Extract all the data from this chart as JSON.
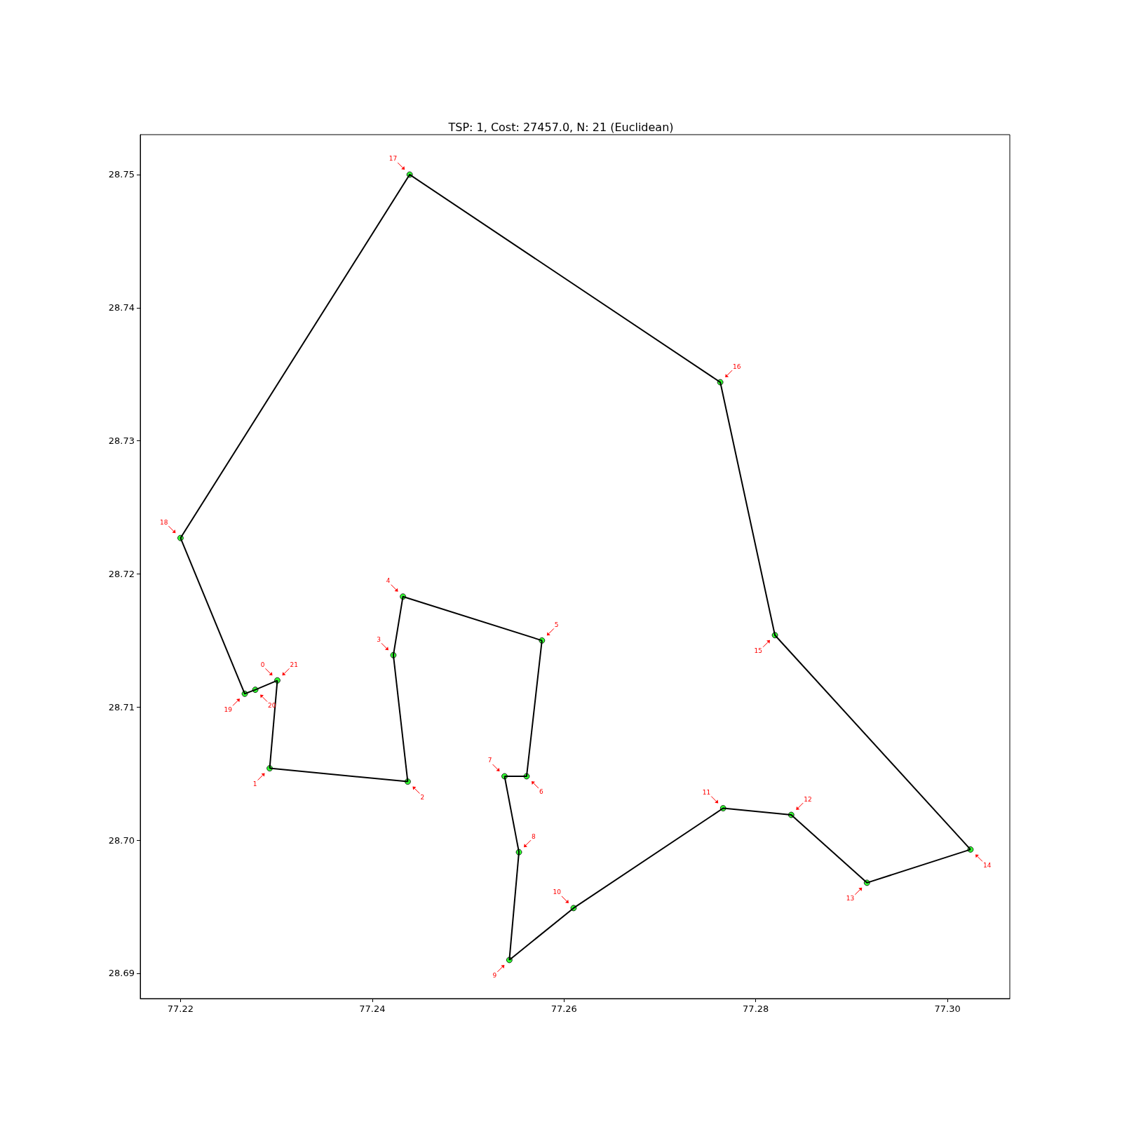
{
  "chart_data": {
    "type": "line",
    "title": "TSP: 1, Cost: 27457.0, N: 21 (Euclidean)",
    "series": [
      {
        "color": "#000000",
        "marker": "none",
        "x": [
          77.2301,
          77.2293
        ],
        "values": [
          28.712,
          28.7054
        ]
      },
      {
        "color": "#000000",
        "marker": "none",
        "x": [
          77.2293,
          77.2437
        ],
        "values": [
          28.7054,
          28.7044
        ]
      },
      {
        "color": "#000000",
        "marker": "none",
        "x": [
          77.2437,
          77.2422
        ],
        "values": [
          28.7044,
          28.7139
        ]
      },
      {
        "color": "#000000",
        "marker": "none",
        "x": [
          77.2422,
          77.2432,
          77.2577
        ],
        "values": [
          28.7139,
          28.7183,
          28.715
        ]
      },
      {
        "color": "#000000",
        "marker": "none",
        "x": [
          77.2577,
          77.2561,
          77.2538
        ],
        "values": [
          28.715,
          28.7048,
          28.7048
        ]
      },
      {
        "color": "#000000",
        "marker": "none",
        "x": [
          77.2538,
          77.2553
        ],
        "values": [
          28.7048,
          28.6991
        ]
      },
      {
        "color": "#000000",
        "marker": "none",
        "x": [
          77.2553,
          77.2543
        ],
        "values": [
          28.6991,
          28.691
        ]
      },
      {
        "color": "#000000",
        "marker": "none",
        "x": [
          77.2543,
          77.261,
          77.2766,
          77.2837,
          77.2916,
          77.3024
        ],
        "values": [
          28.691,
          28.6949,
          28.7024,
          28.7019,
          28.6968,
          28.6993
        ]
      },
      {
        "color": "#000000",
        "marker": "none",
        "x": [
          77.3024,
          77.282,
          77.2763,
          77.2439,
          77.22
        ],
        "values": [
          28.6993,
          28.7154,
          28.7344,
          28.75,
          28.7227
        ]
      },
      {
        "color": "#000000",
        "marker": "none",
        "x": [
          77.22,
          77.2267,
          77.2278,
          77.2301
        ],
        "values": [
          28.7227,
          28.711,
          28.7113,
          28.712
        ]
      },
      {
        "type": "scatter",
        "color": "#00ff00",
        "marker": "circle",
        "x": [
          77.2301,
          77.2293,
          77.2437,
          77.2422,
          77.2432,
          77.2577,
          77.2561,
          77.2538,
          77.2553,
          77.2543,
          77.261,
          77.2766,
          77.2837,
          77.2916,
          77.3024,
          77.282,
          77.2763,
          77.2439,
          77.22,
          77.2267,
          77.2278
        ],
        "values": [
          28.712,
          28.7054,
          28.7044,
          28.7139,
          28.7183,
          28.715,
          28.7048,
          28.7048,
          28.6991,
          28.691,
          28.6949,
          28.7024,
          28.7019,
          28.6968,
          28.6993,
          28.7154,
          28.7344,
          28.75,
          28.7227,
          28.711,
          28.7113
        ]
      }
    ],
    "annotations": [
      {
        "text": "0",
        "x": 77.2301,
        "y": 28.712
      },
      {
        "text": "1",
        "x": 77.2293,
        "y": 28.7054
      },
      {
        "text": "2",
        "x": 77.2437,
        "y": 28.7044
      },
      {
        "text": "3",
        "x": 77.2422,
        "y": 28.7139
      },
      {
        "text": "4",
        "x": 77.2432,
        "y": 28.7183
      },
      {
        "text": "5",
        "x": 77.2577,
        "y": 28.715
      },
      {
        "text": "6",
        "x": 77.2561,
        "y": 28.7048
      },
      {
        "text": "7",
        "x": 77.2538,
        "y": 28.7048
      },
      {
        "text": "8",
        "x": 77.2553,
        "y": 28.6991
      },
      {
        "text": "9",
        "x": 77.2543,
        "y": 28.691
      },
      {
        "text": "10",
        "x": 77.261,
        "y": 28.6949
      },
      {
        "text": "11",
        "x": 77.2766,
        "y": 28.7024
      },
      {
        "text": "12",
        "x": 77.2837,
        "y": 28.7019
      },
      {
        "text": "13",
        "x": 77.2916,
        "y": 28.6968
      },
      {
        "text": "14",
        "x": 77.3024,
        "y": 28.6993
      },
      {
        "text": "15",
        "x": 77.282,
        "y": 28.7154
      },
      {
        "text": "16",
        "x": 77.2763,
        "y": 28.7344
      },
      {
        "text": "17",
        "x": 77.2439,
        "y": 28.75
      },
      {
        "text": "18",
        "x": 77.22,
        "y": 28.7227
      },
      {
        "text": "19",
        "x": 77.2267,
        "y": 28.711
      },
      {
        "text": "20",
        "x": 77.2278,
        "y": 28.7113
      },
      {
        "text": "21",
        "x": 77.2301,
        "y": 28.712
      }
    ],
    "xlim": [
      77.2158,
      77.3065
    ],
    "xticks": [
      77.22,
      77.24,
      77.26,
      77.28,
      {
        "value": 77.3,
        "label": "77.30"
      }
    ],
    "ylim": [
      28.6881,
      28.753
    ],
    "yticks": [
      28.69,
      {
        "value": 28.7,
        "label": "28.70"
      },
      28.71,
      28.72,
      28.73,
      28.74,
      28.75
    ],
    "grid": false
  }
}
